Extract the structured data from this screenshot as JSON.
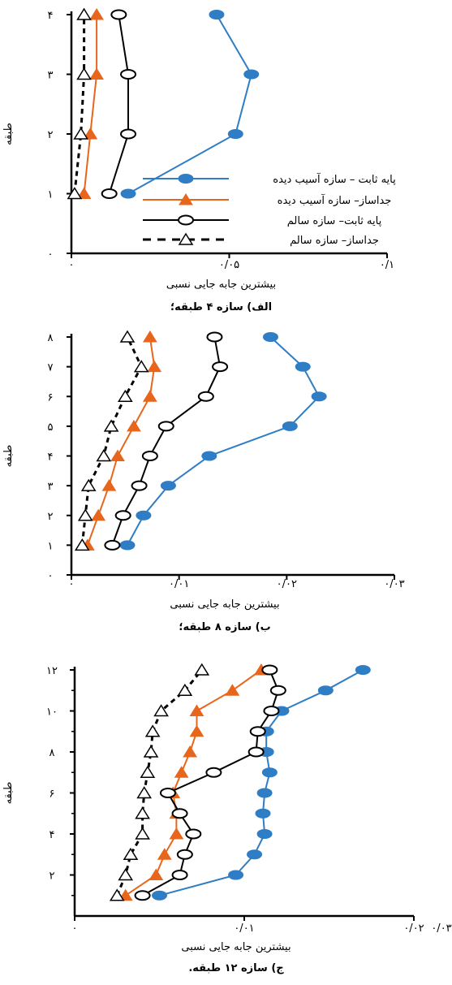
{
  "series_names": [
    "پایه ثابت – سازه آسیب دیده",
    "جداساز– سازه آسیب دیده",
    "پایه ثابت– سازه سالم",
    "جداساز– سازه سالم"
  ],
  "colors": {
    "blue": "#2f7dc4",
    "orange": "#e8661c",
    "black": "#000000"
  },
  "chart_data": [
    {
      "type": "line",
      "title": "الف) سازه ۴ طبقه؛",
      "xlabel": "بیشترین جابه جایی نسبی",
      "ylabel": "طبقه",
      "xlim": [
        0,
        0.1
      ],
      "ylim": [
        0,
        4
      ],
      "x_ticks": [
        "۰",
        "۰/۰۵",
        "۰/۱"
      ],
      "y_ticks": [
        "۰",
        "۱",
        "۲",
        "۳",
        "۴"
      ],
      "legend": "center-right",
      "y": [
        1,
        2,
        3,
        4
      ],
      "series": [
        {
          "name": "پایه ثابت – سازه آسیب دیده",
          "x": [
            0.018,
            0.052,
            0.057,
            0.046
          ]
        },
        {
          "name": "جداساز– سازه آسیب دیده",
          "x": [
            0.004,
            0.006,
            0.008,
            0.008
          ]
        },
        {
          "name": "پایه ثابت– سازه سالم",
          "x": [
            0.012,
            0.018,
            0.018,
            0.015
          ]
        },
        {
          "name": "جداساز– سازه سالم",
          "x": [
            0.001,
            0.003,
            0.004,
            0.004
          ]
        }
      ]
    },
    {
      "type": "line",
      "title": "ب) سازه ۸ طبقه؛",
      "xlabel": "بیشترین جابه جایی نسبی",
      "ylabel": "طبقه",
      "xlim": [
        0,
        0.03
      ],
      "ylim": [
        0,
        8
      ],
      "x_ticks": [
        "۰",
        "۰/۰۱",
        "۰/۰۲",
        "۰/۰۳"
      ],
      "y_ticks": [
        "۰",
        "۱",
        "۲",
        "۳",
        "۴",
        "۵",
        "۶",
        "۷",
        "۸"
      ],
      "y": [
        1,
        2,
        3,
        4,
        5,
        6,
        7,
        8
      ],
      "series": [
        {
          "name": "پایه ثابت – سازه آسیب دیده",
          "x": [
            0.0052,
            0.0067,
            0.009,
            0.0128,
            0.0203,
            0.023,
            0.0215,
            0.0185
          ]
        },
        {
          "name": "جداساز– سازه آسیب دیده",
          "x": [
            0.0015,
            0.0025,
            0.0035,
            0.0043,
            0.0058,
            0.0073,
            0.0077,
            0.0073
          ]
        },
        {
          "name": "پایه ثابت– سازه سالم",
          "x": [
            0.0038,
            0.0048,
            0.0063,
            0.0073,
            0.0088,
            0.0125,
            0.0138,
            0.0133
          ]
        },
        {
          "name": "جداساز– سازه سالم",
          "x": [
            0.001,
            0.0013,
            0.0016,
            0.003,
            0.0037,
            0.005,
            0.0065,
            0.0052
          ]
        }
      ]
    },
    {
      "type": "line",
      "title": "ج) سازه ۱۲ طبقه.",
      "xlabel": "بیشترین جابه جایی نسبی",
      "ylabel": "طبقه",
      "xlim": [
        0,
        0.02
      ],
      "ylim": [
        0,
        12
      ],
      "x_ticks": [
        "۰",
        "۰/۰۱",
        "۰/۰۲"
      ],
      "x_tick_extra": "۰/۰۳",
      "y_ticks": [
        "۲",
        "۴",
        "۶",
        "۸",
        "۱۰",
        "۱۲"
      ],
      "y": [
        1,
        2,
        3,
        4,
        5,
        6,
        7,
        8,
        9,
        10,
        11,
        12
      ],
      "series": [
        {
          "name": "پایه ثابت – سازه آسیب دیده",
          "x": [
            0.005,
            0.0095,
            0.0106,
            0.0112,
            0.0111,
            0.0112,
            0.0115,
            0.0113,
            0.0113,
            0.0122,
            0.0148,
            0.017
          ]
        },
        {
          "name": "جداساز– سازه آسیب دیده",
          "x": [
            0.003,
            0.0048,
            0.0053,
            0.006,
            0.006,
            0.0058,
            0.0063,
            0.0068,
            0.0072,
            0.0072,
            0.0093,
            0.011
          ]
        },
        {
          "name": "پایه ثابت– سازه سالم",
          "x": [
            0.004,
            0.0062,
            0.0065,
            0.007,
            0.0062,
            0.0055,
            0.0082,
            0.0107,
            0.0108,
            0.0116,
            0.012,
            0.0115
          ]
        },
        {
          "name": "جداساز– سازه سالم",
          "x": [
            0.0025,
            0.003,
            0.0033,
            0.004,
            0.004,
            0.0041,
            0.0043,
            0.0045,
            0.0046,
            0.0051,
            0.0065,
            0.0075
          ]
        }
      ]
    }
  ]
}
